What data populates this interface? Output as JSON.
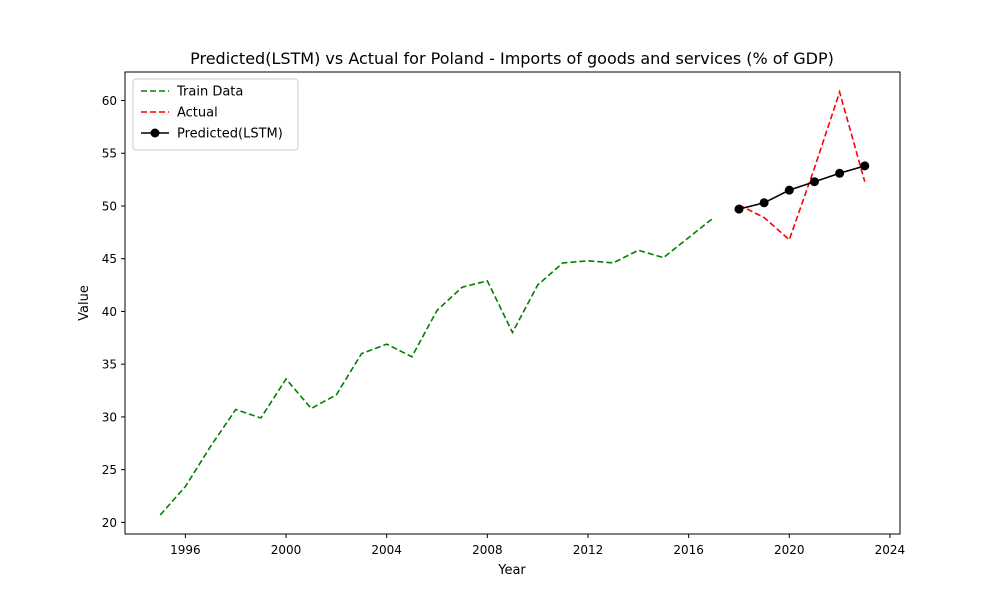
{
  "chart_data": {
    "type": "line",
    "title": "Predicted(LSTM) vs Actual for Poland - Imports of goods and services (% of GDP)",
    "xlabel": "Year",
    "ylabel": "Value",
    "xlim": [
      1993.6,
      2024.4
    ],
    "ylim": [
      18.9,
      62.7
    ],
    "xticks": [
      1996,
      2000,
      2004,
      2008,
      2012,
      2016,
      2020,
      2024
    ],
    "yticks": [
      20,
      25,
      30,
      35,
      40,
      45,
      50,
      55,
      60
    ],
    "grid": false,
    "legend_position": "top-left",
    "series": [
      {
        "name": "Train Data",
        "color": "#008000",
        "style": "dashed",
        "marker": "none",
        "x": [
          1995,
          1996,
          1997,
          1998,
          1999,
          2000,
          2001,
          2002,
          2003,
          2004,
          2005,
          2006,
          2007,
          2008,
          2009,
          2010,
          2011,
          2012,
          2013,
          2014,
          2015,
          2016,
          2017
        ],
        "y": [
          20.7,
          23.4,
          27.2,
          30.7,
          29.9,
          33.6,
          30.8,
          32.1,
          36.0,
          36.9,
          35.7,
          40.1,
          42.3,
          42.9,
          38.0,
          42.5,
          44.6,
          44.8,
          44.6,
          45.8,
          45.1,
          47.0,
          48.9
        ]
      },
      {
        "name": "Actual",
        "color": "#ff0000",
        "style": "dashed",
        "marker": "none",
        "x": [
          2018,
          2019,
          2020,
          2021,
          2022,
          2023
        ],
        "y": [
          50.1,
          48.9,
          46.8,
          53.6,
          60.8,
          52.3
        ]
      },
      {
        "name": "Predicted(LSTM)",
        "color": "#000000",
        "style": "solid",
        "marker": "circle",
        "x": [
          2018,
          2019,
          2020,
          2021,
          2022,
          2023
        ],
        "y": [
          49.7,
          50.3,
          51.5,
          52.3,
          53.1,
          53.8
        ]
      }
    ]
  }
}
